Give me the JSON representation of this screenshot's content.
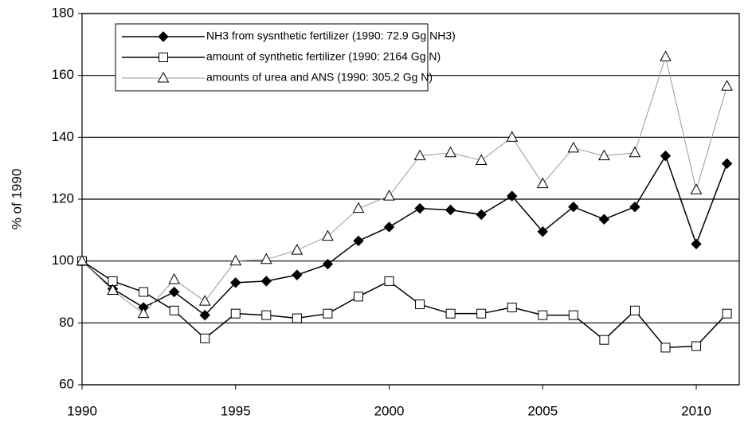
{
  "chart_data": {
    "type": "line",
    "y_label": "% of 1990",
    "x": [
      1990,
      1991,
      1992,
      1993,
      1994,
      1995,
      1996,
      1997,
      1998,
      1999,
      2000,
      2001,
      2002,
      2003,
      2004,
      2005,
      2006,
      2007,
      2008,
      2009,
      2010,
      2011
    ],
    "series": [
      {
        "name": "NH3 from sysnthetic fertilizer (1990: 72.9 Gg NH3)",
        "color": "#000000",
        "marker": "diamond",
        "values": [
          100,
          91,
          85,
          90,
          82.5,
          93,
          93.5,
          95.5,
          99,
          106.5,
          111,
          117,
          116.5,
          115,
          121,
          109.5,
          117.5,
          113.5,
          117.5,
          134,
          105.5,
          131.5
        ]
      },
      {
        "name": "amount of synthetic fertilizer (1990: 2164 Gg N)",
        "color": "#000000",
        "marker": "square",
        "values": [
          100,
          93.5,
          90,
          84,
          75,
          83,
          82.5,
          81.5,
          83,
          88.5,
          93.5,
          86,
          83,
          83,
          85,
          82.5,
          82.5,
          74.5,
          84,
          72,
          72.5,
          83
        ]
      },
      {
        "name": "amounts of urea and ANS (1990: 305.2 Gg N)",
        "color": "#999999",
        "marker": "triangle",
        "values": [
          100,
          90.5,
          83,
          94,
          87,
          100,
          100.5,
          103.5,
          108,
          117,
          121,
          134,
          135,
          132.5,
          140,
          125,
          136.5,
          134,
          135,
          166,
          123,
          156.5
        ]
      }
    ],
    "xlim": [
      1990,
      2011.4
    ],
    "xticks": [
      1990,
      1995,
      2000,
      2005,
      2010
    ],
    "ylim": [
      60,
      180
    ],
    "yticks": [
      60,
      80,
      100,
      120,
      140,
      160,
      180
    ],
    "grid": true,
    "legend": "upper left"
  }
}
